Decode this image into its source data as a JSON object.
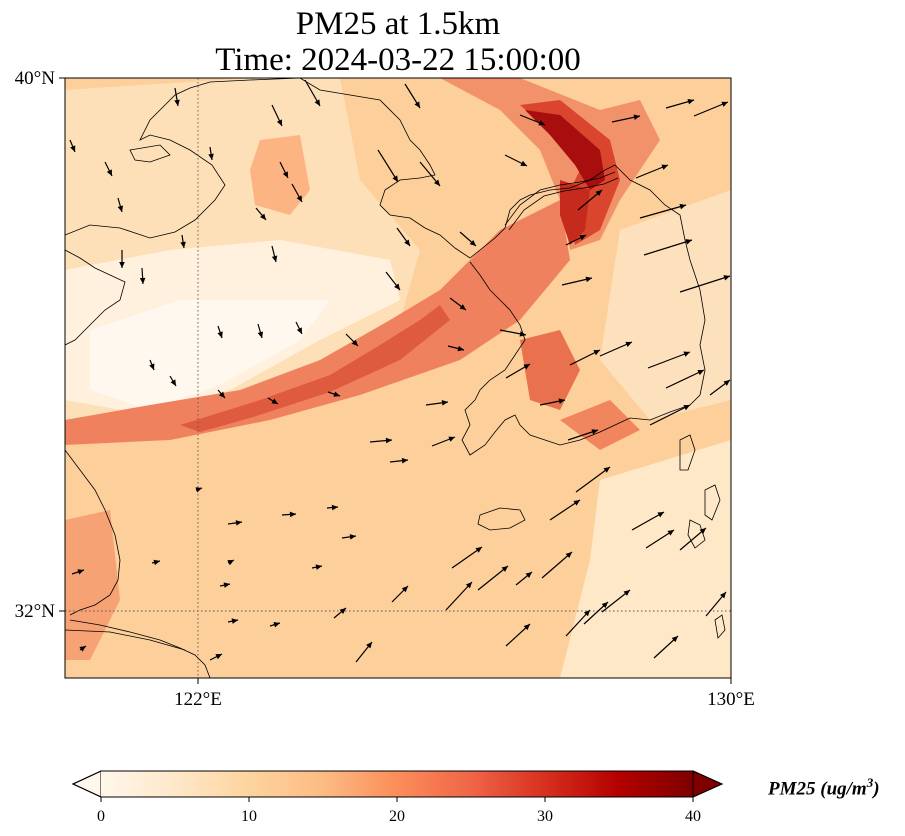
{
  "title": {
    "line1": "PM25 at 1.5km",
    "line2": "Time: 2024-03-22 15:00:00"
  },
  "map": {
    "extent": {
      "lon_min": 120,
      "lon_max": 130,
      "lat_min": 31,
      "lat_max": 40
    },
    "lon_ticks": [
      {
        "value": 122,
        "label": "122°E"
      },
      {
        "value": 130,
        "label": "130°E"
      }
    ],
    "lat_ticks": [
      {
        "value": 40,
        "label": "40°N"
      },
      {
        "value": 32,
        "label": "32°N"
      }
    ],
    "gridlines": "dotted",
    "variable": "PM25",
    "level": "1.5km"
  },
  "colorbar": {
    "label": "PM25 (ug/m",
    "label_superscript": "3",
    "label_close": ")",
    "ticks": [
      "0",
      "10",
      "20",
      "30",
      "40"
    ],
    "min": 0,
    "max": 40,
    "colormap": "OrRd",
    "extend": "both",
    "colors": [
      "#fff7ec",
      "#fee8c8",
      "#fdd49e",
      "#fdbb84",
      "#fc8d59",
      "#ef6548",
      "#d7301f",
      "#b30000",
      "#7f0000"
    ]
  }
}
